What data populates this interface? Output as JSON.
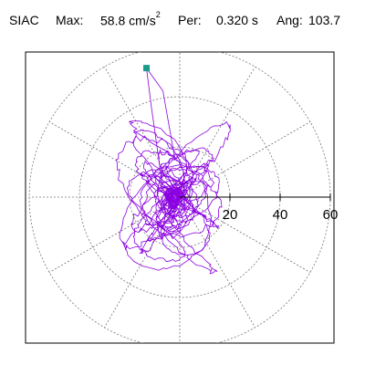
{
  "header": {
    "station": "SIAC",
    "max_label": "Max:",
    "max_value": "58.8 cm/s",
    "max_exp": "2",
    "per_label": "Per:",
    "per_value": "0.320 s",
    "ang_label": "Ang:",
    "ang_value": "103.7"
  },
  "chart_data": {
    "type": "polar-hodogram",
    "title": "SIAC Max: 58.8 cm/s2 Per: 0.320 s Ang: 103.7",
    "radial_ticks": [
      20,
      40,
      60
    ],
    "radial_tick_labels": [
      "20",
      "40",
      "60"
    ],
    "rings": [
      20,
      40,
      60
    ],
    "spokes_every_deg": 30,
    "max_value": 58.8,
    "period_s": 0.32,
    "angle_deg": 103.7,
    "peak_marker_color": "#1a9a8a",
    "trace_color": "#8a00e0",
    "grid": true
  }
}
